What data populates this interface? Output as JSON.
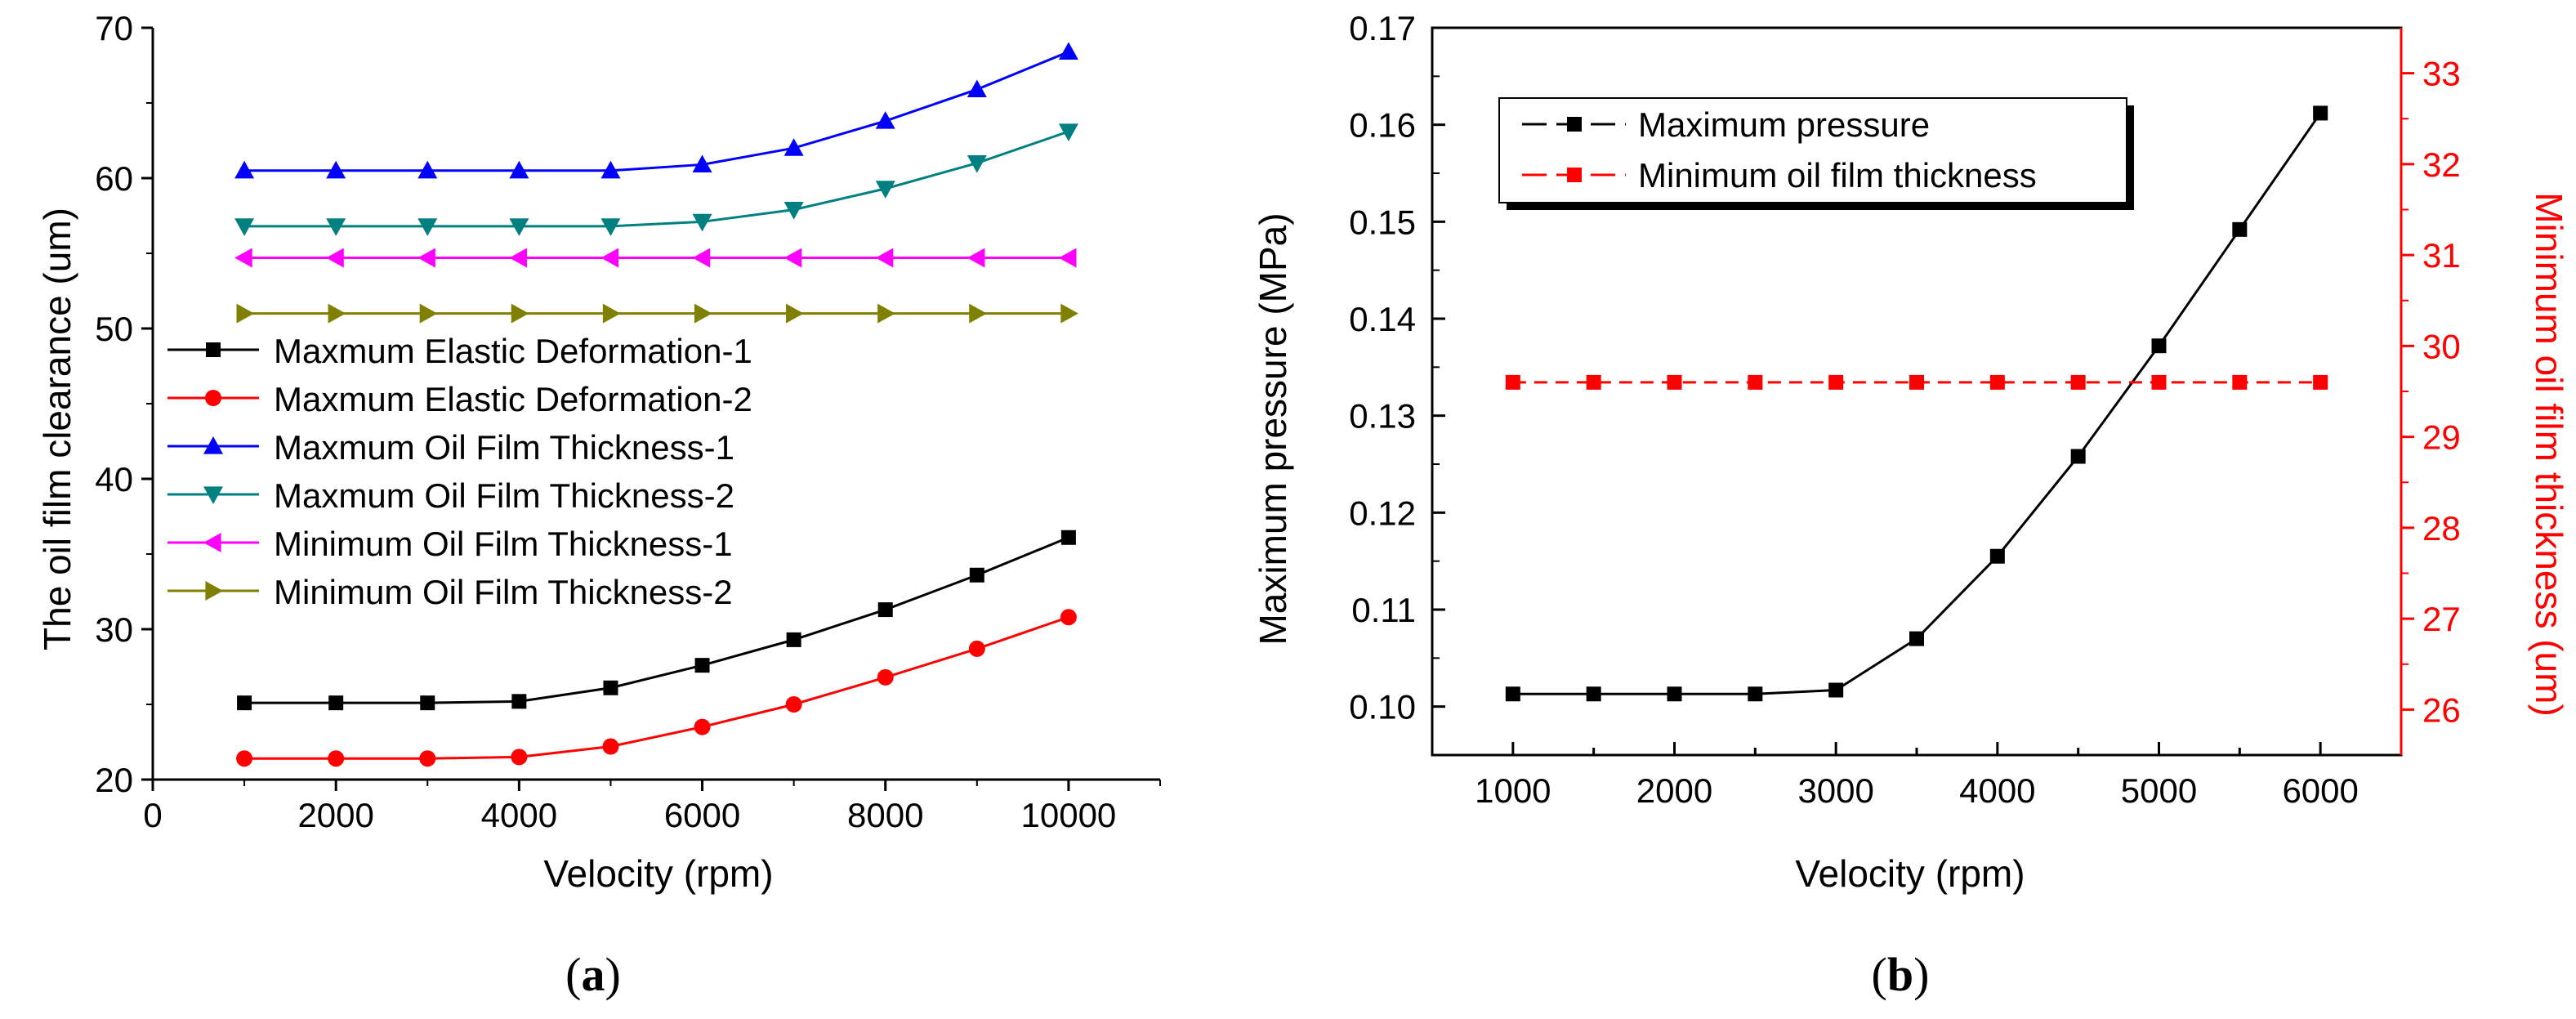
{
  "chart_data": [
    {
      "type": "line",
      "panel_label": "a",
      "xlabel": "Velocity (rpm)",
      "ylabel": "The oil film clearance (um)",
      "xlim": [
        0,
        11000
      ],
      "ylim": [
        20,
        70
      ],
      "xticks": [
        0,
        2000,
        4000,
        6000,
        8000,
        10000
      ],
      "yticks": [
        20,
        30,
        40,
        50,
        60,
        70
      ],
      "x": [
        1000,
        2000,
        3000,
        4000,
        5000,
        6000,
        7000,
        8000,
        9000,
        10000
      ],
      "legend_position": "center-left",
      "series": [
        {
          "name": "Maxmum Elastic Deformation-1",
          "color": "#000000",
          "marker": "square",
          "values": [
            25.1,
            25.1,
            25.1,
            25.2,
            26.1,
            27.6,
            29.3,
            31.3,
            33.6,
            36.1
          ]
        },
        {
          "name": "Maxmum Elastic Deformation-2",
          "color": "#ff0000",
          "marker": "circle",
          "values": [
            21.4,
            21.4,
            21.4,
            21.5,
            22.2,
            23.5,
            25.0,
            26.8,
            28.7,
            30.8
          ]
        },
        {
          "name": "Maxmum Oil Film Thickness-1",
          "color": "#0000ff",
          "marker": "triangle-up",
          "values": [
            60.5,
            60.5,
            60.5,
            60.5,
            60.5,
            60.9,
            62.0,
            63.8,
            65.9,
            68.4
          ]
        },
        {
          "name": "Maxmum Oil Film Thickness-2",
          "color": "#008080",
          "marker": "triangle-down",
          "values": [
            56.8,
            56.8,
            56.8,
            56.8,
            56.8,
            57.1,
            57.9,
            59.3,
            61.0,
            63.1
          ]
        },
        {
          "name": "Minimum Oil Film Thickness-1",
          "color": "#ff00ff",
          "marker": "triangle-left",
          "values": [
            54.7,
            54.7,
            54.7,
            54.7,
            54.7,
            54.7,
            54.7,
            54.7,
            54.7,
            54.7
          ]
        },
        {
          "name": "Minimum Oil Film Thickness-2",
          "color": "#808000",
          "marker": "triangle-right",
          "values": [
            51.0,
            51.0,
            51.0,
            51.0,
            51.0,
            51.0,
            51.0,
            51.0,
            51.0,
            51.0
          ]
        }
      ]
    },
    {
      "type": "line",
      "panel_label": "b",
      "xlabel": "Velocity (rpm)",
      "ylabel": "Maximum pressure (MPa)",
      "y2label": "Minimum oil film thickness (um)",
      "xlim": [
        500,
        6500
      ],
      "ylim": [
        0.095,
        0.17
      ],
      "y2lim": [
        25.5,
        33.5
      ],
      "xticks": [
        1000,
        1500,
        2000,
        2500,
        3000,
        3500,
        4000,
        4500,
        5000,
        5500,
        6000
      ],
      "xtick_labels": [
        "1000",
        "",
        "2000",
        "",
        "3000",
        "",
        "4000",
        "",
        "5000",
        "",
        "6000"
      ],
      "yticks": [
        0.1,
        0.11,
        0.12,
        0.13,
        0.14,
        0.15,
        0.16,
        0.17
      ],
      "ytick_labels": [
        "0.10",
        "0.11",
        "0.12",
        "0.13",
        "0.14",
        "0.15",
        "0.16",
        "0.17"
      ],
      "y2ticks": [
        26,
        27,
        28,
        29,
        30,
        31,
        32,
        33
      ],
      "x": [
        1000,
        1500,
        2000,
        2500,
        3000,
        3500,
        4000,
        4500,
        5000,
        5500,
        6000
      ],
      "legend_position": "top-left",
      "series": [
        {
          "name": "Maximum pressure",
          "color": "#000000",
          "axis": "left",
          "marker": "square",
          "values": [
            0.1013,
            0.1013,
            0.1013,
            0.1013,
            0.1017,
            0.107,
            0.1155,
            0.1258,
            0.1372,
            0.1492,
            0.1612
          ]
        },
        {
          "name": "Minimum oil film thickness",
          "color": "#ff0000",
          "axis": "right",
          "marker": "square",
          "dashed": true,
          "values": [
            29.6,
            29.6,
            29.6,
            29.6,
            29.6,
            29.6,
            29.6,
            29.6,
            29.6,
            29.6,
            29.6
          ]
        }
      ]
    }
  ]
}
